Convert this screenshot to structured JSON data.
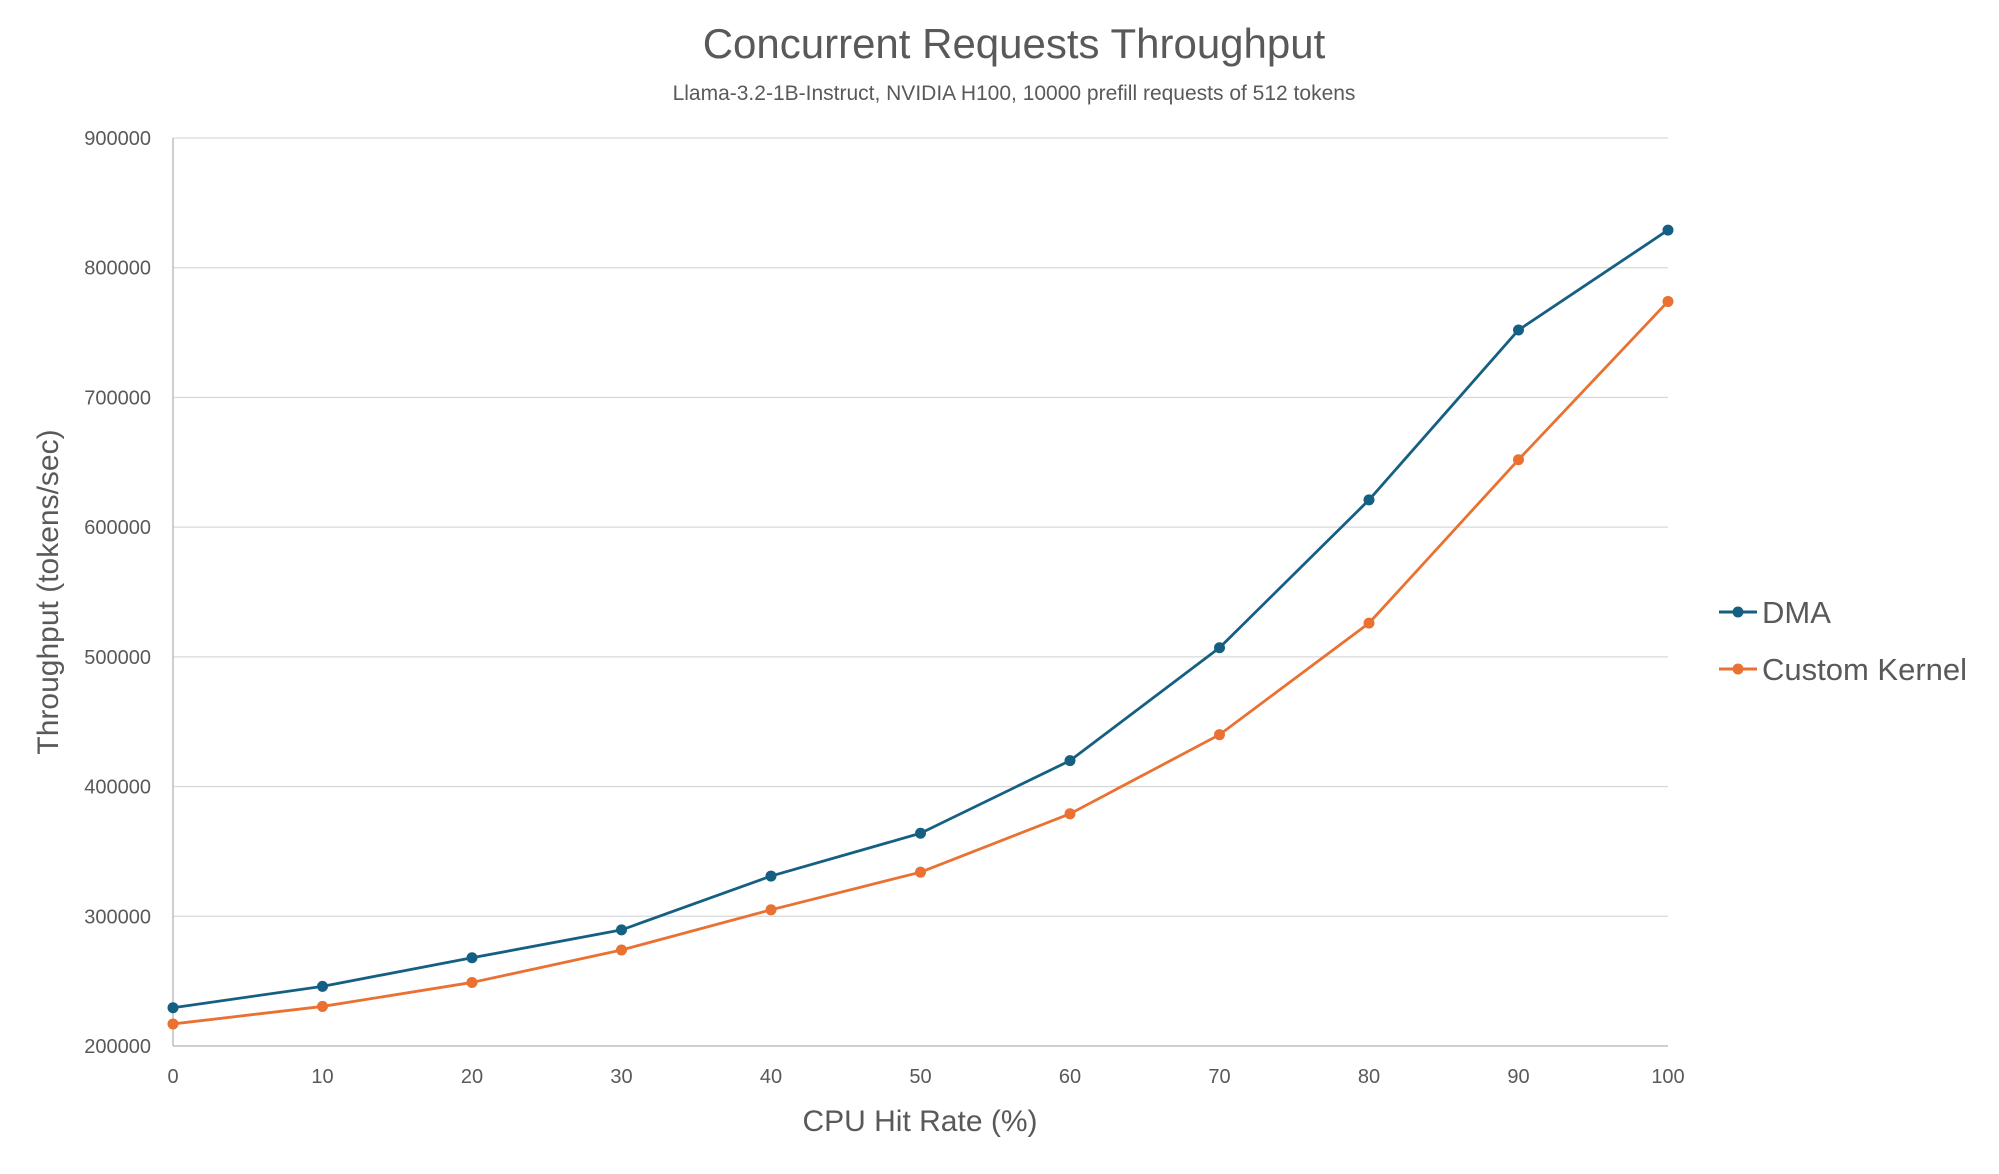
{
  "chart_data": {
    "type": "line",
    "title": "Concurrent Requests Throughput",
    "subtitle": "Llama-3.2-1B-Instruct, NVIDIA H100, 10000 prefill requests of 512 tokens",
    "xlabel": "CPU Hit Rate (%)",
    "ylabel": "Throughput (tokens/sec)",
    "x": [
      0,
      10,
      20,
      30,
      40,
      50,
      60,
      70,
      80,
      90,
      100
    ],
    "xlim": [
      0,
      100
    ],
    "ylim": [
      200000,
      900000
    ],
    "xticks": [
      "0",
      "10",
      "20",
      "30",
      "40",
      "50",
      "60",
      "70",
      "80",
      "90",
      "100"
    ],
    "yticks": [
      "200000",
      "300000",
      "400000",
      "500000",
      "600000",
      "700000",
      "800000",
      "900000"
    ],
    "grid": "horizontal",
    "legend_position": "right",
    "series": [
      {
        "name": "DMA",
        "color": "#156082",
        "values": [
          229500,
          246000,
          268000,
          289500,
          331000,
          364000,
          420000,
          507000,
          621000,
          752000,
          829000
        ]
      },
      {
        "name": "Custom Kernel",
        "color": "#E97132",
        "values": [
          217000,
          230500,
          249000,
          274000,
          305000,
          334000,
          379000,
          440000,
          526000,
          652000,
          774000
        ]
      }
    ]
  }
}
